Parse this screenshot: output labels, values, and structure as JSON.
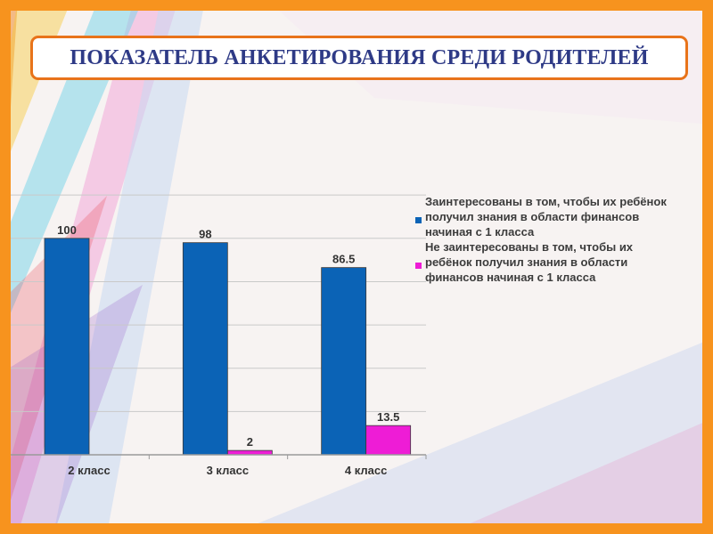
{
  "header": {
    "title": "ПОКАЗАТЕЛЬ АНКЕТИРОВАНИЯ СРЕДИ РОДИТЕЛЕЙ"
  },
  "colors": {
    "frame": "#f7931e",
    "title_border": "#e8731a",
    "title_text": "#2e3a86",
    "series_interested": "#0b63b6",
    "series_not_interested": "#ee1cd6"
  },
  "chart_data": {
    "type": "bar",
    "title": "",
    "xlabel": "",
    "ylabel": "",
    "ylim": [
      0,
      125
    ],
    "grid": true,
    "legend_position": "right",
    "categories": [
      "2 класс",
      "3 класс",
      "4 класс"
    ],
    "series": [
      {
        "name": "Заинтересованы в том, чтобы их ребёнок получил знания в области финансов начиная с 1 класса",
        "color": "#0b63b6",
        "values": [
          100,
          98,
          86.5
        ],
        "labels": [
          "100",
          "98",
          "86.5"
        ]
      },
      {
        "name": "Не заинтересованы в том, чтобы их ребёнок получил знания в области финансов начиная с 1 класса",
        "color": "#ee1cd6",
        "values": [
          0,
          2,
          13.5
        ],
        "labels": [
          "",
          "2",
          "13.5"
        ]
      }
    ]
  }
}
